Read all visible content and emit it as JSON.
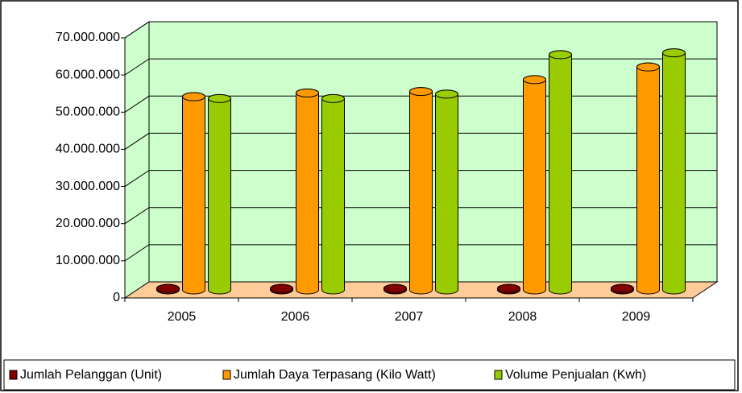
{
  "chart_data": {
    "type": "bar3d",
    "categories": [
      "2005",
      "2006",
      "2007",
      "2008",
      "2009"
    ],
    "series": [
      {
        "name": "Jumlah Pelanggan (Unit)",
        "color": "#800000",
        "values": [
          400000,
          400000,
          400000,
          400000,
          400000
        ]
      },
      {
        "name": "Jumlah Daya Terpasang (Kilo Watt)",
        "color": "#ff9900",
        "values": [
          52000000,
          53000000,
          53400000,
          56600000,
          60000000
        ]
      },
      {
        "name": "Volume Penjualan (Kwh)",
        "color": "#99cc00",
        "values": [
          51500000,
          51500000,
          52700000,
          63300000,
          63800000
        ]
      }
    ],
    "ylim": [
      0,
      70000000
    ],
    "yticks": [
      0,
      {
        "value": 10000000,
        "label": "10.000.000"
      },
      {
        "value": 20000000,
        "label": "20.000.000"
      },
      {
        "value": 30000000,
        "label": "30.000.000"
      },
      {
        "value": 40000000,
        "label": "40.000.000"
      },
      {
        "value": 50000000,
        "label": "50.000.000"
      },
      {
        "value": 60000000,
        "label": "60.000.000"
      },
      {
        "value": 70000000,
        "label": "70.000.000"
      }
    ],
    "grid": true,
    "legend": "bottom",
    "wall_color": "#ccffcc",
    "floor_color": "#ffcc99"
  }
}
